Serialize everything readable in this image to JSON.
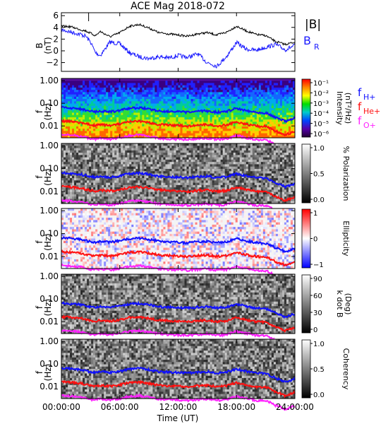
{
  "title": "ACE Mag 2018-072",
  "colors": {
    "B_total": "#000000",
    "B_R": "#1a1aff",
    "f_H": "#1010ff",
    "f_He": "#ff1010",
    "f_O": "#ff20ff"
  },
  "xlabel": "Time (UT)",
  "x_ticks": [
    "00:00:00",
    "06:00:00",
    "12:00:00",
    "18:00:00",
    "24:00:00"
  ],
  "legend": {
    "absB": "|B|",
    "BR_main": "B",
    "BR_sub": "R",
    "f_main": "f",
    "fH_sub": "H+",
    "fHe_sub": "He+",
    "fO_sub": "O+"
  },
  "panels": [
    {
      "key": "B",
      "ylabel_top": "B",
      "ylabel_bottom": "(nT)",
      "y_ticks": [
        "6",
        "4",
        "2",
        "0",
        "−2"
      ],
      "ylim": [
        -3.5,
        6.5
      ]
    },
    {
      "key": "intensity",
      "ylabel_top": "f",
      "ylabel_bottom": "(Hz)",
      "y_ticks": [
        "1.00",
        "0.10",
        "0.01"
      ],
      "colorbar_title": "Intensity",
      "colorbar_unit": "(nT²/Hz)",
      "colorbar_ticks": [
        "10⁻¹",
        "10⁻²",
        "10⁻³",
        "10⁻⁴",
        "10⁻⁵",
        "10⁻⁶"
      ],
      "colormap": "rainbow"
    },
    {
      "key": "polarization",
      "ylabel_top": "f",
      "ylabel_bottom": "(Hz)",
      "y_ticks": [
        "1.00",
        "0.10",
        "0.01"
      ],
      "colorbar_title": "% Polarization",
      "colorbar_ticks": [
        "1.0",
        "0.5",
        "0.0"
      ],
      "colormap": "gray"
    },
    {
      "key": "ellipticity",
      "ylabel_top": "f",
      "ylabel_bottom": "(Hz)",
      "y_ticks": [
        "1.00",
        "0.10",
        "0.01"
      ],
      "colorbar_title": "Ellipticity",
      "colorbar_ticks": [
        "1",
        "0",
        "−1"
      ],
      "colormap": "bluewhitered"
    },
    {
      "key": "kdotB",
      "ylabel_top": "f",
      "ylabel_bottom": "(Hz)",
      "y_ticks": [
        "1.00",
        "0.10",
        "0.01"
      ],
      "colorbar_title": "k dot B",
      "colorbar_unit": "(Deg)",
      "colorbar_ticks": [
        "90",
        "60",
        "30",
        "0"
      ],
      "colormap": "gray"
    },
    {
      "key": "coherency",
      "ylabel_top": "f",
      "ylabel_bottom": "(Hz)",
      "y_ticks": [
        "1.00",
        "0.10",
        "0.01"
      ],
      "colorbar_title": "Coherency",
      "colorbar_ticks": [
        "1.0",
        "0.5",
        "0.0"
      ],
      "colormap": "gray"
    }
  ],
  "chart_data": {
    "type": "line",
    "title": "ACE Mag 2018-072",
    "xlabel": "Time (UT)",
    "xlim_hours": [
      0,
      24
    ],
    "x_hours": [
      0,
      1,
      2,
      2.5,
      3,
      3.5,
      4,
      5,
      6,
      7,
      8,
      9,
      10,
      11,
      12,
      13,
      14,
      15,
      16,
      17,
      18,
      19,
      20,
      21,
      22,
      23,
      24
    ],
    "series": [
      {
        "name": "|B|",
        "panel": "B",
        "values": [
          4.2,
          4.1,
          3.6,
          3.4,
          3.0,
          2.6,
          3.3,
          2.4,
          3.1,
          4.2,
          4.5,
          3.9,
          3.1,
          2.9,
          2.7,
          2.5,
          2.9,
          3.1,
          2.7,
          3.2,
          4.2,
          3.4,
          2.8,
          2.6,
          1.6,
          1.1,
          1.5
        ]
      },
      {
        "name": "B_R",
        "panel": "B",
        "values": [
          3.6,
          3.2,
          2.8,
          2.5,
          1.5,
          -0.3,
          -0.8,
          1.5,
          1.2,
          -0.3,
          -1.0,
          -1.3,
          -1.0,
          -1.2,
          -0.8,
          -1.1,
          -0.5,
          -2.0,
          -2.6,
          -0.9,
          1.4,
          0.3,
          0.1,
          0.6,
          1.1,
          0.2,
          0.9
        ]
      },
      {
        "name": "f_H+",
        "panel": "spectrograms",
        "values": [
          0.066,
          0.062,
          0.056,
          0.05,
          0.045,
          0.042,
          0.046,
          0.042,
          0.048,
          0.06,
          0.064,
          0.056,
          0.046,
          0.044,
          0.042,
          0.04,
          0.044,
          0.046,
          0.04,
          0.044,
          0.06,
          0.048,
          0.04,
          0.038,
          0.024,
          0.016,
          0.022
        ]
      },
      {
        "name": "f_He+",
        "panel": "spectrograms",
        "values": [
          0.0165,
          0.0155,
          0.014,
          0.0125,
          0.0112,
          0.0105,
          0.0115,
          0.0105,
          0.012,
          0.015,
          0.016,
          0.014,
          0.0115,
          0.011,
          0.0105,
          0.01,
          0.011,
          0.0115,
          0.01,
          0.011,
          0.015,
          0.012,
          0.01,
          0.0095,
          0.006,
          0.004,
          0.0055
        ]
      },
      {
        "name": "f_O+",
        "panel": "spectrograms",
        "values": [
          0.0041,
          0.0039,
          0.0035,
          0.0031,
          0.0028,
          0.0026,
          0.0029,
          0.0026,
          0.003,
          0.0037,
          0.004,
          0.0035,
          0.0029,
          0.0027,
          0.0026,
          0.0025,
          0.0027,
          0.0029,
          0.0025,
          0.0027,
          0.0037,
          0.003,
          0.0025,
          0.0024,
          0.0015,
          0.001,
          0.0014
        ]
      }
    ]
  }
}
